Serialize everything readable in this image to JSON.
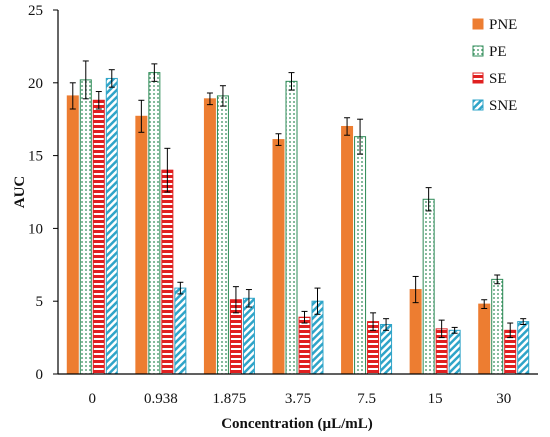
{
  "chart_data": {
    "type": "bar",
    "xlabel": "Concentration (µL/mL)",
    "ylabel": "AUC",
    "ylim": [
      0,
      25
    ],
    "yticks": [
      0,
      5,
      10,
      15,
      20,
      25
    ],
    "categories": [
      "0",
      "0.938",
      "1.875",
      "3.75",
      "7.5",
      "15",
      "30"
    ],
    "legend_position": "top-right",
    "grid": false,
    "error_bars": true,
    "series": [
      {
        "name": "PNE",
        "color": "#ED7D31",
        "pattern": "solid",
        "values": [
          19.1,
          17.7,
          18.9,
          16.1,
          17.0,
          5.8,
          4.8
        ],
        "errors": [
          0.9,
          1.1,
          0.4,
          0.4,
          0.6,
          0.9,
          0.3
        ]
      },
      {
        "name": "PE",
        "color": "#2E8B57",
        "pattern": "dots",
        "values": [
          20.2,
          20.7,
          19.1,
          20.1,
          16.3,
          12.0,
          6.5
        ],
        "errors": [
          1.3,
          0.6,
          0.7,
          0.6,
          1.2,
          0.8,
          0.3
        ]
      },
      {
        "name": "SE",
        "color": "#E02020",
        "pattern": "horizontal-stripes",
        "values": [
          18.8,
          14.0,
          5.1,
          3.9,
          3.6,
          3.1,
          3.0
        ],
        "errors": [
          0.6,
          1.5,
          0.9,
          0.4,
          0.6,
          0.6,
          0.5
        ]
      },
      {
        "name": "SNE",
        "color": "#2FA4C8",
        "pattern": "diagonal-stripes",
        "values": [
          20.3,
          5.9,
          5.2,
          5.0,
          3.4,
          3.0,
          3.6
        ],
        "errors": [
          0.6,
          0.4,
          0.6,
          0.9,
          0.4,
          0.2,
          0.2
        ]
      }
    ]
  }
}
